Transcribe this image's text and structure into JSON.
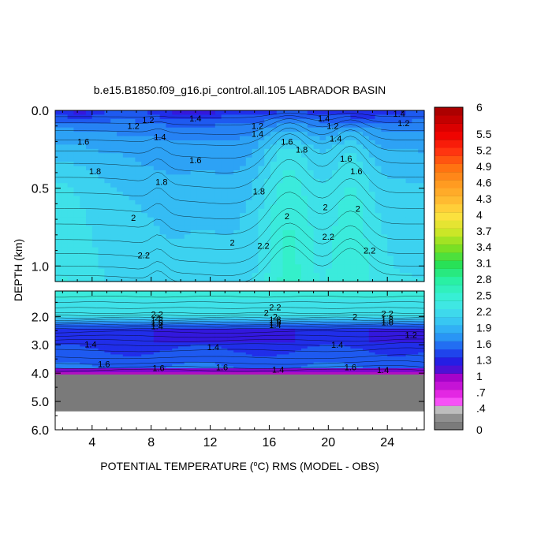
{
  "chart_data": {
    "type": "heatmap",
    "title": "b.e15.B1850.f09_g16.pi_control.all.105 LABRADOR BASIN",
    "xlabel_parts": {
      "pre": "POTENTIAL TEMPERATURE (",
      "sup": "o",
      "post": "C) RMS (MODEL - OBS)"
    },
    "ylabel": "DEPTH (km)",
    "xlim": [
      1.5,
      26.5
    ],
    "x_ticks": [
      4,
      8,
      12,
      16,
      20,
      24
    ],
    "upper_panel": {
      "ylim": [
        0.0,
        1.1
      ],
      "y_ticks": [
        "0.0",
        "0.5",
        "1.0"
      ],
      "y_values": [
        0.0,
        0.5,
        1.0
      ]
    },
    "lower_panel": {
      "ylim": [
        1.1,
        6.0
      ],
      "y_ticks": [
        "2.0",
        "3.0",
        "4.0",
        "5.0",
        "6.0"
      ],
      "y_values": [
        2.0,
        3.0,
        4.0,
        5.0,
        6.0
      ],
      "bottom_topography_depth_km": 5.35
    },
    "colorbar": {
      "labels": [
        "6",
        "5.5",
        "5.2",
        "4.9",
        "4.6",
        "4.3",
        "4",
        "3.7",
        "3.4",
        "3.1",
        "2.8",
        "2.5",
        "2.2",
        "1.9",
        "1.6",
        "1.3",
        "1",
        ".7",
        ".4",
        "0"
      ],
      "label_values": [
        6,
        5.5,
        5.2,
        4.9,
        4.6,
        4.3,
        4,
        3.7,
        3.4,
        3.1,
        2.8,
        2.5,
        2.2,
        1.9,
        1.6,
        1.3,
        1,
        0.7,
        0.4,
        0
      ],
      "range": [
        0,
        6
      ]
    },
    "contour_labels": [
      {
        "text": "1.2",
        "x": 7.8,
        "d": 0.06
      },
      {
        "text": "1.4",
        "x": 11,
        "d": 0.05
      },
      {
        "text": "1.2",
        "x": 6.8,
        "d": 0.1
      },
      {
        "text": "1.4",
        "x": 8.6,
        "d": 0.17
      },
      {
        "text": "1.6",
        "x": 3.4,
        "d": 0.2
      },
      {
        "text": "1.2",
        "x": 15.2,
        "d": 0.1
      },
      {
        "text": "1.4",
        "x": 15.2,
        "d": 0.15
      },
      {
        "text": "1.4",
        "x": 19.7,
        "d": 0.05
      },
      {
        "text": "1.2",
        "x": 20.3,
        "d": 0.1
      },
      {
        "text": "1.4",
        "x": 20.5,
        "d": 0.18
      },
      {
        "text": "1.4",
        "x": 24.8,
        "d": 0.02
      },
      {
        "text": "1.2",
        "x": 25.1,
        "d": 0.08
      },
      {
        "text": "1.6",
        "x": 17.2,
        "d": 0.2
      },
      {
        "text": "1.8",
        "x": 18.2,
        "d": 0.25
      },
      {
        "text": "1.6",
        "x": 11,
        "d": 0.32
      },
      {
        "text": "1.6",
        "x": 21.2,
        "d": 0.31
      },
      {
        "text": "1.8",
        "x": 4.2,
        "d": 0.39
      },
      {
        "text": "1.8",
        "x": 8.7,
        "d": 0.46
      },
      {
        "text": "1.6",
        "x": 21.9,
        "d": 0.39
      },
      {
        "text": "1.8",
        "x": 15.3,
        "d": 0.52
      },
      {
        "text": "2",
        "x": 19.8,
        "d": 0.62
      },
      {
        "text": "2",
        "x": 22,
        "d": 0.63
      },
      {
        "text": "2",
        "x": 6.8,
        "d": 0.69
      },
      {
        "text": "2",
        "x": 17.2,
        "d": 0.68
      },
      {
        "text": "2",
        "x": 13.5,
        "d": 0.85
      },
      {
        "text": "2.2",
        "x": 15.6,
        "d": 0.87
      },
      {
        "text": "2.2",
        "x": 20,
        "d": 0.81
      },
      {
        "text": "2.2",
        "x": 22.8,
        "d": 0.9
      },
      {
        "text": "2.2",
        "x": 7.5,
        "d": 0.93
      },
      {
        "text": "2.2",
        "x": 16.4,
        "d": 1.67
      },
      {
        "text": "2",
        "x": 15.8,
        "d": 1.86
      },
      {
        "text": "2.2",
        "x": 8.4,
        "d": 1.92
      },
      {
        "text": "2",
        "x": 8.4,
        "d": 2.03
      },
      {
        "text": "1.8",
        "x": 8.4,
        "d": 2.13
      },
      {
        "text": "1.6",
        "x": 8.4,
        "d": 2.23
      },
      {
        "text": "1.4",
        "x": 8.4,
        "d": 2.34
      },
      {
        "text": "2",
        "x": 16.4,
        "d": 2.0
      },
      {
        "text": "1.8",
        "x": 16.4,
        "d": 2.1
      },
      {
        "text": "1.6",
        "x": 16.4,
        "d": 2.2
      },
      {
        "text": "1.4",
        "x": 16.4,
        "d": 2.3
      },
      {
        "text": "2",
        "x": 21.8,
        "d": 2.0
      },
      {
        "text": "2.2",
        "x": 24,
        "d": 1.9
      },
      {
        "text": "1.8",
        "x": 24,
        "d": 2.1
      },
      {
        "text": "1.6",
        "x": 24,
        "d": 2.2
      },
      {
        "text": "1.2",
        "x": 25.6,
        "d": 2.65
      },
      {
        "text": "1.4",
        "x": 3.9,
        "d": 2.98
      },
      {
        "text": "1.4",
        "x": 12.2,
        "d": 3.07
      },
      {
        "text": "1.4",
        "x": 20.6,
        "d": 3.0
      },
      {
        "text": "1.6",
        "x": 4.8,
        "d": 3.68
      },
      {
        "text": "1.6",
        "x": 12.8,
        "d": 3.79
      },
      {
        "text": "1.6",
        "x": 21.5,
        "d": 3.79
      },
      {
        "text": "1.4",
        "x": 23.7,
        "d": 3.88
      },
      {
        "text": "1.6",
        "x": 8.5,
        "d": 3.82
      },
      {
        "text": "1.4",
        "x": 16.6,
        "d": 3.87
      }
    ]
  }
}
